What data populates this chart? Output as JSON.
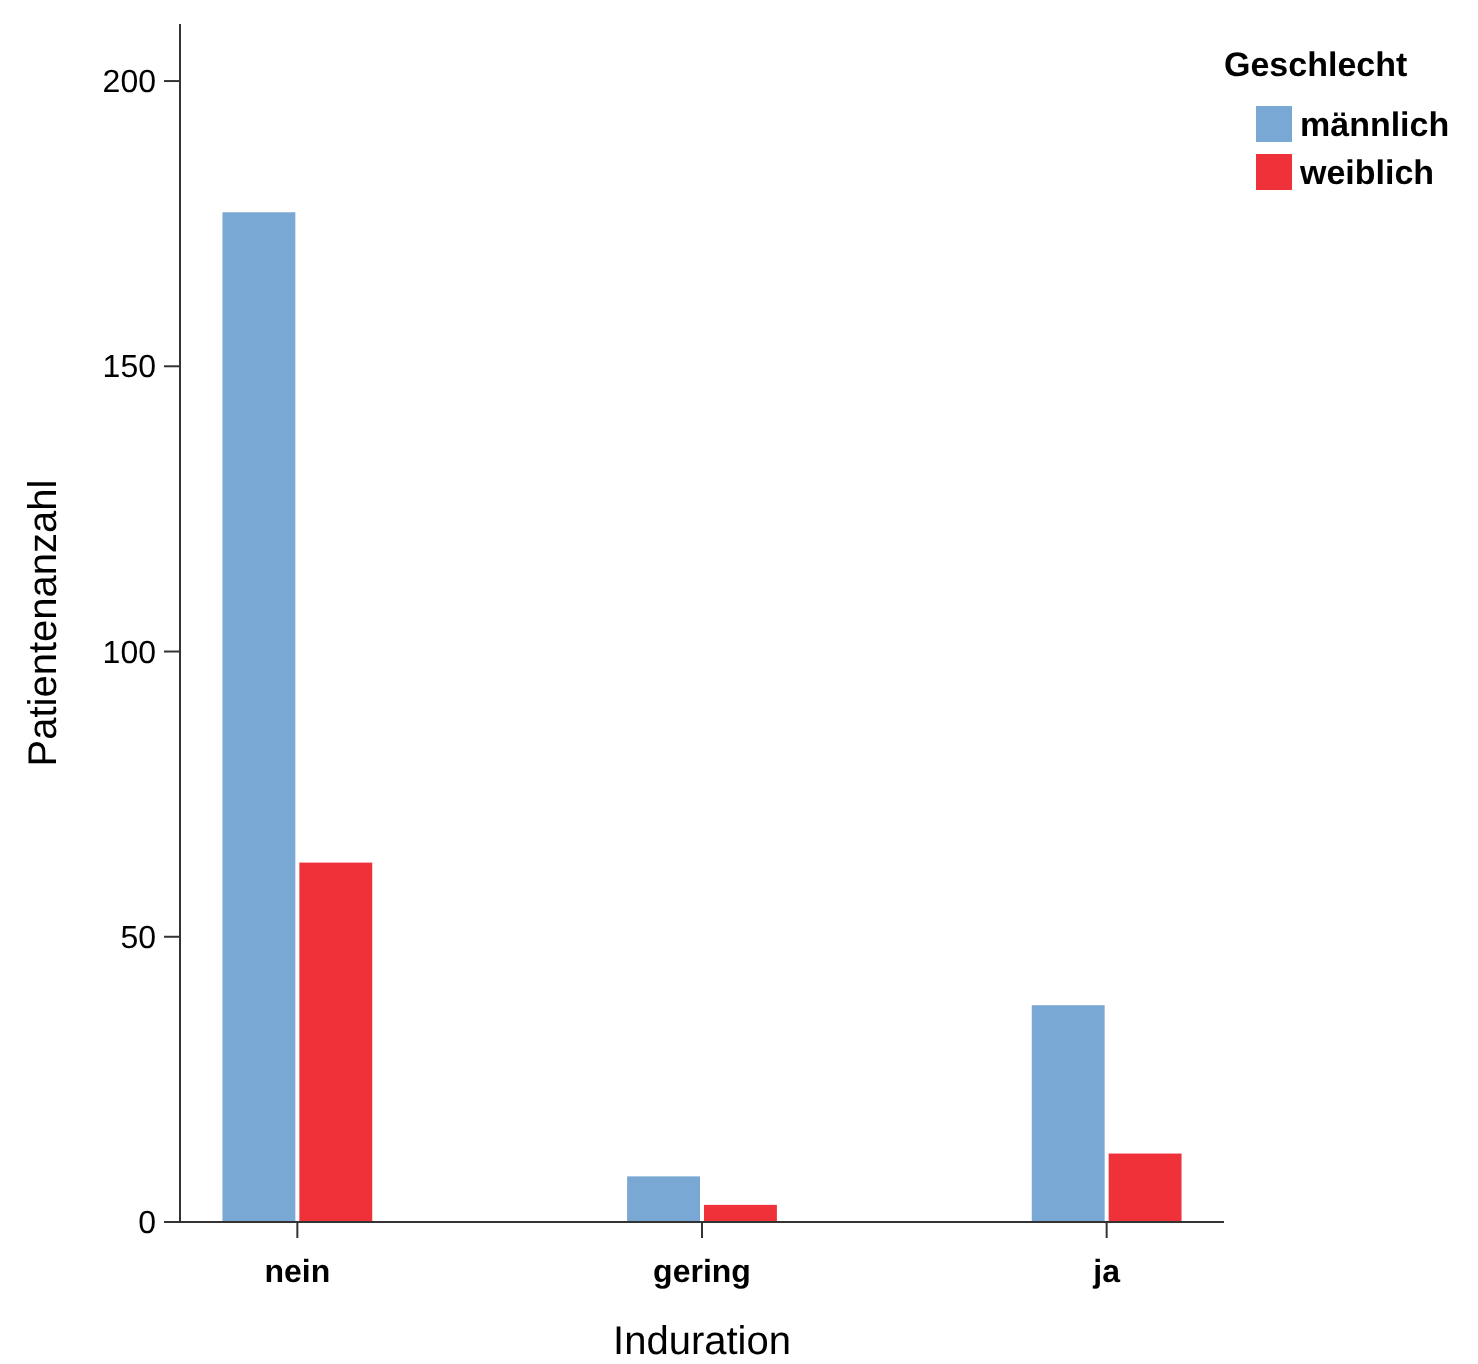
{
  "chart_data": {
    "type": "bar",
    "xlabel": "Induration",
    "ylabel": "Patientenanzahl",
    "legend_title": "Geschlecht",
    "legend": "top right",
    "grid": false,
    "categories": [
      "nein",
      "gering",
      "ja"
    ],
    "series": [
      {
        "name": "männlich",
        "color": "#7aa8d4",
        "values": [
          177,
          8,
          38
        ]
      },
      {
        "name": "weiblich",
        "color": "#ef3139",
        "values": [
          63,
          3,
          12
        ]
      }
    ],
    "ylim": [
      0,
      210
    ],
    "yticks": [
      0,
      50,
      100,
      150,
      200
    ]
  }
}
